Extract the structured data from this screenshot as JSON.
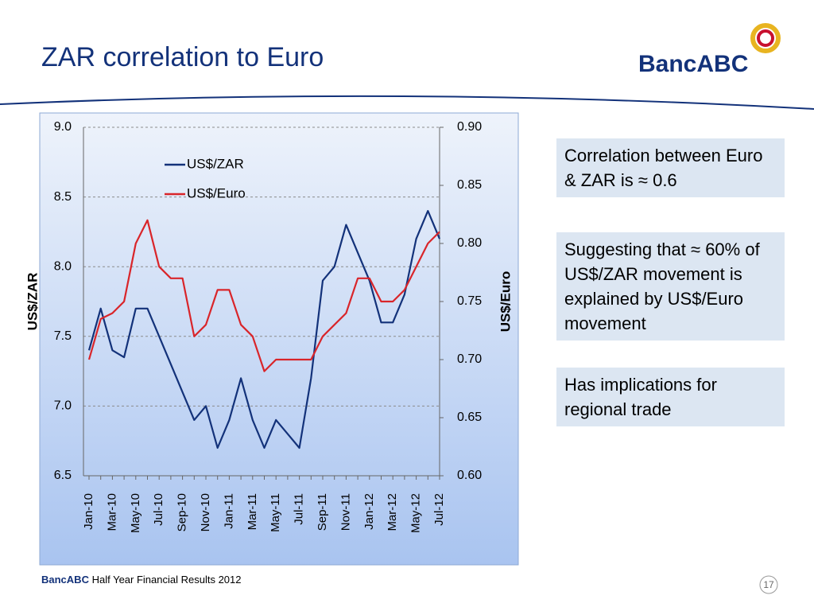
{
  "header": {
    "title": "ZAR correlation to Euro",
    "logo": "BancABC"
  },
  "chart_data": {
    "type": "line",
    "categories": [
      "Jan-10",
      null,
      "Mar-10",
      null,
      "May-10",
      null,
      "Jul-10",
      null,
      "Sep-10",
      null,
      "Nov-10",
      null,
      "Jan-11",
      null,
      "Mar-11",
      null,
      "May-11",
      null,
      "Jul-11",
      null,
      "Sep-11",
      null,
      "Nov-11",
      null,
      "Jan-12",
      null,
      "Mar-12",
      null,
      "May-12",
      null,
      "Jul-12"
    ],
    "series": [
      {
        "name": "US$/ZAR",
        "color": "#13327a",
        "values": [
          7.4,
          7.7,
          7.4,
          7.35,
          7.7,
          7.7,
          7.5,
          7.3,
          7.1,
          6.9,
          7.0,
          6.7,
          6.9,
          7.2,
          6.9,
          6.7,
          6.9,
          6.8,
          6.7,
          7.2,
          7.9,
          8.0,
          8.3,
          8.1,
          7.9,
          7.6,
          7.6,
          7.8,
          8.2,
          8.4,
          8.2
        ]
      },
      {
        "name": "US$/Euro",
        "color": "#d9252a",
        "axis": "y2",
        "values": [
          0.7,
          0.735,
          0.74,
          0.75,
          0.8,
          0.82,
          0.78,
          0.77,
          0.77,
          0.72,
          0.73,
          0.76,
          0.76,
          0.73,
          0.72,
          0.69,
          0.7,
          0.7,
          0.7,
          0.7,
          0.72,
          0.73,
          0.74,
          0.77,
          0.77,
          0.75,
          0.75,
          0.76,
          0.78,
          0.8,
          0.81
        ]
      }
    ],
    "y_label": "US$/ZAR",
    "y2_label": "US$/Euro",
    "ylim": [
      6.5,
      9.0
    ],
    "yticks": [
      6.5,
      {
        "value": 7.0,
        "label": "7.0"
      },
      7.5,
      {
        "value": 8.0,
        "label": "8.0"
      },
      8.5,
      {
        "value": 9.0,
        "label": "9.0"
      }
    ],
    "y2lim": [
      0.6,
      0.9
    ],
    "y2ticks": [
      {
        "value": 0.6,
        "label": "0.60"
      },
      0.65,
      {
        "value": 0.7,
        "label": "0.70"
      },
      0.75,
      {
        "value": 0.8,
        "label": "0.80"
      },
      0.85,
      {
        "value": 0.9,
        "label": "0.90"
      }
    ],
    "grid": true,
    "legend": "top-left"
  },
  "callouts": [
    "Correlation between Euro & ZAR is ≈ 0.6",
    "Suggesting that ≈ 60% of US$/ZAR movement is explained by US$/Euro movement",
    "Has implications for regional trade"
  ],
  "footer": {
    "brand": "BancABC",
    "text": "Half Year Financial Results 2012",
    "page": "17"
  }
}
